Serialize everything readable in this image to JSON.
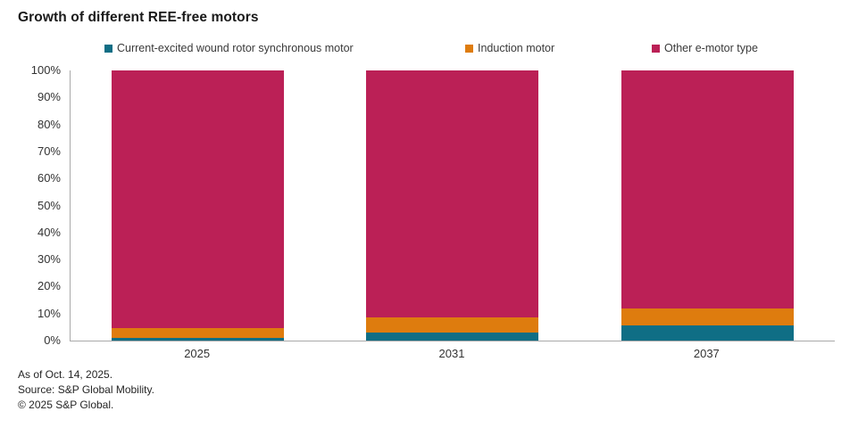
{
  "chart_data": {
    "type": "bar",
    "stacked": true,
    "stacked_100_percent": true,
    "title": "Growth of different REE-free motors",
    "categories": [
      "2025",
      "2031",
      "2037"
    ],
    "series": [
      {
        "name": "Current-excited wound rotor synchronous motor",
        "color": "#0f6e85",
        "values": [
          1,
          3,
          5.5
        ]
      },
      {
        "name": "Induction motor",
        "color": "#de7c0e",
        "values": [
          3.5,
          5.5,
          6.5
        ]
      },
      {
        "name": "Other e-motor type",
        "color": "#bb2056",
        "values": [
          95.5,
          91.5,
          88
        ]
      }
    ],
    "ylim": [
      0,
      100
    ],
    "yticks": [
      "100%",
      "90%",
      "80%",
      "70%",
      "60%",
      "50%",
      "40%",
      "30%",
      "20%",
      "10%",
      "0%"
    ],
    "xlabel": "",
    "ylabel": "",
    "grid": false,
    "legend_position": "top"
  },
  "footer": {
    "as_of": "As of Oct. 14, 2025.",
    "source": "Source: S&P Global Mobility.",
    "copyright": "© 2025 S&P Global."
  },
  "colors": {
    "axis_line": "#a9a9a9",
    "title_text": "#1a1a1a",
    "tick_text": "#333333",
    "legend_text": "#3a3a3a",
    "footer_text": "#262626",
    "background": "#ffffff"
  }
}
